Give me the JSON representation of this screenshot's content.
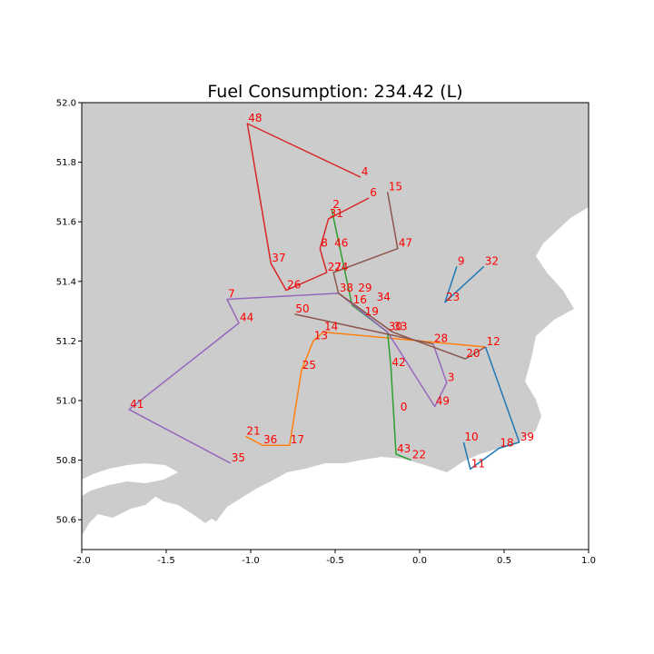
{
  "chart_data": {
    "type": "line",
    "title": "Fuel Consumption: 234.42 (L)",
    "xlabel": "",
    "ylabel": "",
    "xlim": [
      -2.0,
      1.0
    ],
    "ylim": [
      50.5,
      52.0
    ],
    "x_ticks": [
      "-2.0",
      "-1.5",
      "-1.0",
      "-0.5",
      "0.0",
      "0.5",
      "1.0"
    ],
    "y_ticks": [
      "50.6",
      "50.8",
      "51.0",
      "51.2",
      "51.4",
      "51.6",
      "51.8",
      "52.0"
    ],
    "grid": false,
    "legend": "none",
    "background": "map of southern England (land grey, sea white)",
    "colors": {
      "land": "#cccccc",
      "sea": "#ffffff",
      "label": "#ff0000"
    },
    "nodes": [
      {
        "id": "0",
        "x": -0.12,
        "y": 50.96
      },
      {
        "id": "2",
        "x": -0.52,
        "y": 51.64
      },
      {
        "id": "3",
        "x": 0.16,
        "y": 51.06
      },
      {
        "id": "4",
        "x": -0.35,
        "y": 51.75
      },
      {
        "id": "6",
        "x": -0.3,
        "y": 51.68
      },
      {
        "id": "7",
        "x": -1.14,
        "y": 51.34
      },
      {
        "id": "8",
        "x": -0.59,
        "y": 51.51
      },
      {
        "id": "9",
        "x": 0.22,
        "y": 51.45
      },
      {
        "id": "10",
        "x": 0.26,
        "y": 50.86
      },
      {
        "id": "11",
        "x": 0.3,
        "y": 50.77
      },
      {
        "id": "12",
        "x": 0.39,
        "y": 51.18
      },
      {
        "id": "13",
        "x": -0.63,
        "y": 51.2
      },
      {
        "id": "14",
        "x": -0.57,
        "y": 51.23
      },
      {
        "id": "15",
        "x": -0.19,
        "y": 51.7
      },
      {
        "id": "16",
        "x": -0.4,
        "y": 51.32
      },
      {
        "id": "17",
        "x": -0.77,
        "y": 50.85
      },
      {
        "id": "18",
        "x": 0.47,
        "y": 50.84
      },
      {
        "id": "19",
        "x": -0.33,
        "y": 51.28
      },
      {
        "id": "20",
        "x": 0.27,
        "y": 51.14
      },
      {
        "id": "21",
        "x": -1.03,
        "y": 50.88
      },
      {
        "id": "22",
        "x": -0.05,
        "y": 50.8
      },
      {
        "id": "23",
        "x": 0.15,
        "y": 51.33
      },
      {
        "id": "24",
        "x": -0.51,
        "y": 51.43
      },
      {
        "id": "25",
        "x": -0.7,
        "y": 51.1
      },
      {
        "id": "26",
        "x": -0.79,
        "y": 51.37
      },
      {
        "id": "27",
        "x": -0.55,
        "y": 51.43
      },
      {
        "id": "28",
        "x": 0.08,
        "y": 51.19
      },
      {
        "id": "29",
        "x": -0.37,
        "y": 51.36
      },
      {
        "id": "30",
        "x": -0.19,
        "y": 51.23
      },
      {
        "id": "31",
        "x": -0.54,
        "y": 51.61
      },
      {
        "id": "32",
        "x": 0.38,
        "y": 51.45
      },
      {
        "id": "33",
        "x": -0.16,
        "y": 51.23
      },
      {
        "id": "34",
        "x": -0.26,
        "y": 51.33
      },
      {
        "id": "35",
        "x": -1.12,
        "y": 50.79
      },
      {
        "id": "36",
        "x": -0.93,
        "y": 50.85
      },
      {
        "id": "37",
        "x": -0.88,
        "y": 51.46
      },
      {
        "id": "38",
        "x": -0.48,
        "y": 51.36
      },
      {
        "id": "39",
        "x": 0.59,
        "y": 50.86
      },
      {
        "id": "41",
        "x": -1.72,
        "y": 50.97
      },
      {
        "id": "42",
        "x": -0.17,
        "y": 51.11
      },
      {
        "id": "43",
        "x": -0.14,
        "y": 50.82
      },
      {
        "id": "44",
        "x": -1.07,
        "y": 51.26
      },
      {
        "id": "46",
        "x": -0.51,
        "y": 51.51
      },
      {
        "id": "47",
        "x": -0.13,
        "y": 51.51
      },
      {
        "id": "48",
        "x": -1.02,
        "y": 51.93
      },
      {
        "id": "49",
        "x": 0.09,
        "y": 50.98
      },
      {
        "id": "50",
        "x": -0.74,
        "y": 51.29
      }
    ],
    "series": [
      {
        "color": "#1f77b4",
        "path": [
          "9",
          "23",
          "32"
        ]
      },
      {
        "color": "#1f77b4",
        "path": [
          "12",
          "39",
          "18",
          "11",
          "10"
        ]
      },
      {
        "color": "#ff7f0e",
        "path": [
          "12",
          "14",
          "13",
          "25",
          "17",
          "36",
          "21"
        ]
      },
      {
        "color": "#2ca02c",
        "path": [
          "2",
          "16",
          "30",
          "42",
          "43",
          "22"
        ]
      },
      {
        "color": "#d62728",
        "path": [
          "4",
          "48",
          "37",
          "26",
          "27",
          "8",
          "31",
          "6"
        ]
      },
      {
        "color": "#9467bd",
        "path": [
          "35",
          "41",
          "44",
          "7",
          "38",
          "30",
          "49",
          "3",
          "28"
        ]
      },
      {
        "color": "#8c564b",
        "path": [
          "15",
          "47",
          "24",
          "38",
          "33",
          "20",
          "12"
        ]
      },
      {
        "color": "#8c564b",
        "path": [
          "50",
          "28"
        ]
      }
    ]
  }
}
